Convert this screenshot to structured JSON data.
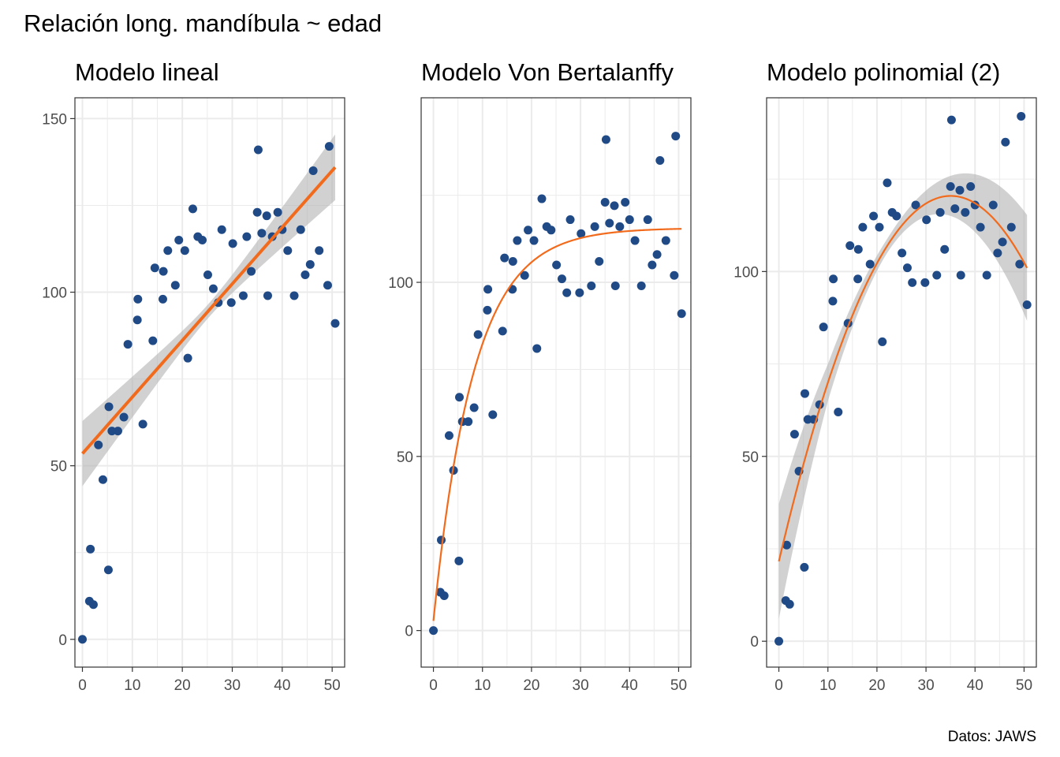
{
  "figure": {
    "title": "Relación long. mandíbula ~ edad",
    "caption": "Datos: JAWS"
  },
  "colors": {
    "points": "#1f4a86",
    "fit": "#f26b1d",
    "ribbon": "#b3b3b3",
    "grid": "#ebebeb",
    "panel_border": "#333333",
    "axis_text": "#4d4d4d"
  },
  "chart_data": [
    {
      "type": "scatter",
      "title": "Modelo lineal",
      "xlabel": "",
      "ylabel": "",
      "xlim": [
        -1.5,
        52.5
      ],
      "ylim": [
        -8,
        156
      ],
      "xticks": [
        0,
        10,
        20,
        30,
        40,
        50
      ],
      "yticks": [
        0,
        50,
        100,
        150
      ],
      "grid": true,
      "points": {
        "x": [
          0.0,
          1.4,
          1.6,
          2.2,
          3.2,
          4.1,
          5.2,
          5.3,
          5.9,
          7.1,
          8.3,
          9.1,
          11.0,
          11.1,
          12.1,
          14.1,
          14.5,
          16.1,
          16.2,
          17.1,
          18.6,
          19.3,
          20.5,
          21.1,
          22.1,
          23.1,
          24.0,
          25.1,
          26.2,
          27.2,
          27.9,
          29.8,
          30.1,
          32.2,
          32.9,
          33.8,
          35.0,
          35.2,
          35.9,
          36.9,
          37.1,
          38.0,
          39.1,
          40.0,
          41.1,
          42.4,
          43.7,
          44.6,
          45.6,
          46.2,
          47.4,
          49.1,
          49.4,
          50.6
        ],
        "y": [
          0.0,
          11.0,
          26.0,
          10.0,
          56.0,
          46.0,
          20.0,
          67.0,
          60.0,
          60.0,
          64.0,
          85.0,
          92.0,
          98.0,
          62.0,
          86.0,
          107.0,
          98.0,
          106.0,
          112.0,
          102.0,
          115.0,
          112.0,
          81.0,
          124.0,
          116.0,
          115.0,
          105.0,
          101.0,
          97.0,
          118.0,
          97.0,
          114.0,
          99.0,
          116.0,
          106.0,
          123.0,
          141.0,
          117.0,
          122.0,
          99.0,
          116.0,
          123.0,
          118.0,
          112.0,
          99.0,
          118.0,
          105.0,
          108.0,
          135.0,
          112.0,
          102.0,
          142.0,
          91.0
        ]
      },
      "fit": {
        "model": "linear",
        "intercept": 53.5,
        "slope": 1.63,
        "x_range": [
          0.0,
          50.6
        ],
        "se_band": true
      },
      "series": [
        {
          "values": "fitted line"
        }
      ]
    },
    {
      "type": "scatter",
      "title": "Modelo Von Bertalanffy",
      "xlabel": "",
      "ylabel": "",
      "xlim": [
        -2.5,
        52.5
      ],
      "ylim": [
        -10.5,
        153
      ],
      "xticks": [
        0,
        10,
        20,
        30,
        40,
        50
      ],
      "yticks": [
        0,
        50,
        100
      ],
      "grid": true,
      "fit": {
        "model": "von_bertalanffy",
        "Linf": 115.6,
        "K": 0.122,
        "t0": -0.2,
        "x_range": [
          0.0,
          50.6
        ],
        "se_band": false
      }
    },
    {
      "type": "scatter",
      "title": "Modelo polinomial (2)",
      "xlabel": "",
      "ylabel": "",
      "xlim": [
        -2.5,
        52.5
      ],
      "ylim": [
        -7,
        147
      ],
      "xticks": [
        0,
        10,
        20,
        30,
        40,
        50
      ],
      "yticks": [
        0,
        50,
        100
      ],
      "grid": true,
      "fit": {
        "model": "polynomial_2",
        "a": 21.6,
        "b": 5.642,
        "c": -0.0805,
        "x_range": [
          0.0,
          50.6
        ],
        "se_band": true
      }
    }
  ]
}
